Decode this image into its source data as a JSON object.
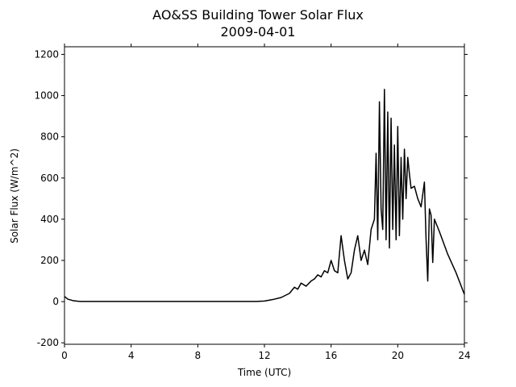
{
  "chart_data": {
    "type": "line",
    "title": "AO&SS Building Tower Solar Flux",
    "subtitle": "2009-04-01",
    "xlabel": "Time (UTC)",
    "ylabel": "Solar Flux (W/m^2)",
    "xlim": [
      0,
      24
    ],
    "xticks": [
      0,
      4,
      8,
      12,
      16,
      20,
      24
    ],
    "ylim": [
      -207,
      1237
    ],
    "yticks": [
      -200,
      0,
      200,
      400,
      600,
      800,
      1000,
      1200
    ],
    "series": [
      {
        "color": "#000000",
        "x": [
          0,
          0.2,
          0.5,
          0.8,
          1,
          2,
          3,
          4,
          5,
          6,
          7,
          8,
          9,
          10,
          11,
          11.5,
          12,
          12.5,
          13,
          13.5,
          13.8,
          14,
          14.2,
          14.5,
          14.8,
          15,
          15.2,
          15.4,
          15.6,
          15.8,
          16,
          16.2,
          16.4,
          16.6,
          16.8,
          17,
          17.2,
          17.4,
          17.6,
          17.8,
          18,
          18.2,
          18.4,
          18.6,
          18.7,
          18.8,
          18.9,
          19.0,
          19.1,
          19.2,
          19.3,
          19.4,
          19.5,
          19.6,
          19.7,
          19.8,
          19.9,
          20.0,
          20.1,
          20.2,
          20.3,
          20.4,
          20.5,
          20.6,
          20.7,
          20.8,
          21,
          21.2,
          21.4,
          21.6,
          21.7,
          21.8,
          21.9,
          22.0,
          22.1,
          22.2,
          22.5,
          23,
          23.5,
          24
        ],
        "values": [
          25,
          12,
          5,
          2,
          1,
          1,
          1,
          1,
          1,
          1,
          1,
          1,
          1,
          1,
          1,
          1,
          3,
          10,
          20,
          40,
          70,
          60,
          90,
          75,
          100,
          110,
          130,
          120,
          150,
          140,
          200,
          150,
          140,
          320,
          200,
          110,
          140,
          250,
          320,
          200,
          250,
          180,
          350,
          400,
          720,
          300,
          970,
          450,
          350,
          1030,
          300,
          920,
          260,
          890,
          350,
          760,
          300,
          850,
          320,
          700,
          400,
          740,
          500,
          700,
          620,
          550,
          560,
          500,
          460,
          580,
          300,
          100,
          450,
          420,
          190,
          400,
          340,
          230,
          140,
          35
        ]
      }
    ]
  }
}
